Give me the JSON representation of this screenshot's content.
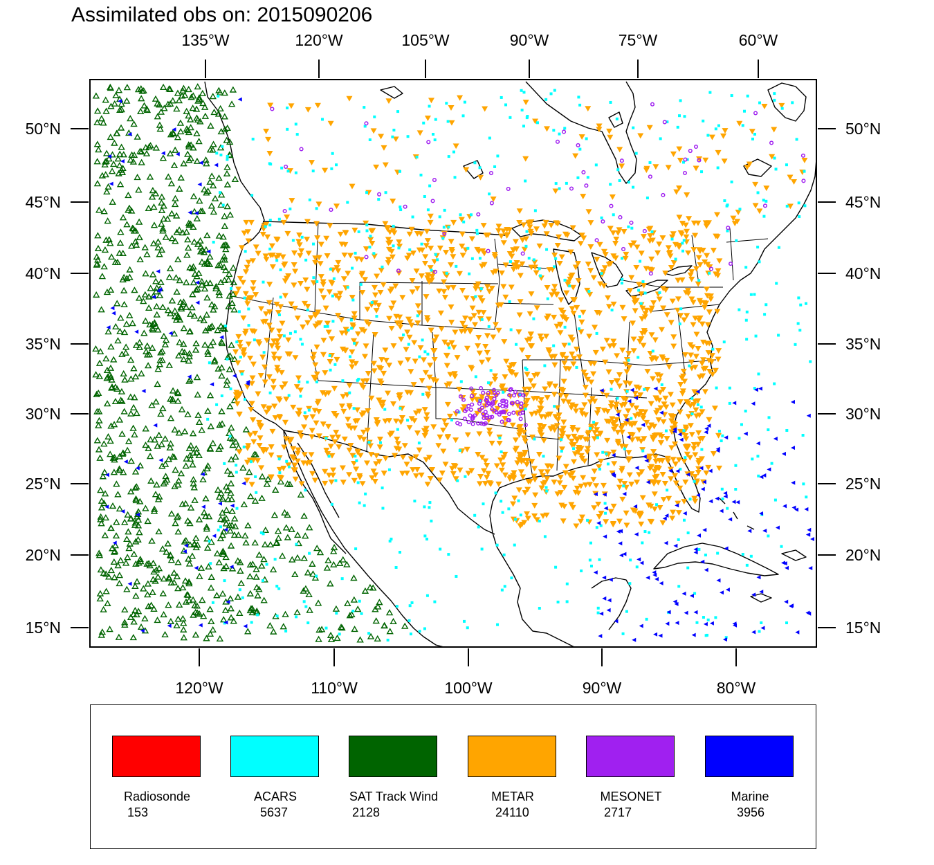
{
  "title": "Assimilated obs on: 2015090206",
  "axes": {
    "top_lon_labels": [
      "135°W",
      "120°W",
      "105°W",
      "90°W",
      "75°W",
      "60°W"
    ],
    "bottom_lon_labels": [
      "120°W",
      "110°W",
      "100°W",
      "90°W",
      "80°W"
    ],
    "lat_labels": [
      "50°N",
      "45°N",
      "40°N",
      "35°N",
      "30°N",
      "25°N",
      "20°N",
      "15°N"
    ]
  },
  "legend": [
    {
      "name": "Radiosonde",
      "count": "153",
      "color": "#ff0000"
    },
    {
      "name": "ACARS",
      "count": "5637",
      "color": "#00ffff"
    },
    {
      "name": "SAT Track Wind",
      "count": "2128",
      "color": "#006400"
    },
    {
      "name": "METAR",
      "count": "24110",
      "color": "#ffa500"
    },
    {
      "name": "MESONET",
      "count": "2717",
      "color": "#a020f0"
    },
    {
      "name": "Marine",
      "count": "3956",
      "color": "#0000ff"
    }
  ]
}
